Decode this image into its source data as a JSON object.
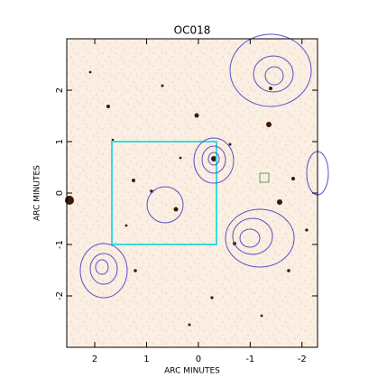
{
  "chart_data": {
    "type": "image",
    "title": "OC018",
    "xlabel": "ARC MINUTES",
    "ylabel": "ARC MINUTES",
    "xlim": [
      2.54,
      -2.3
    ],
    "ylim": [
      -3,
      3
    ],
    "xticks": [
      2,
      1,
      0,
      -1,
      -2
    ],
    "yticks": [
      -2,
      -1,
      0,
      1,
      2
    ]
  }
}
